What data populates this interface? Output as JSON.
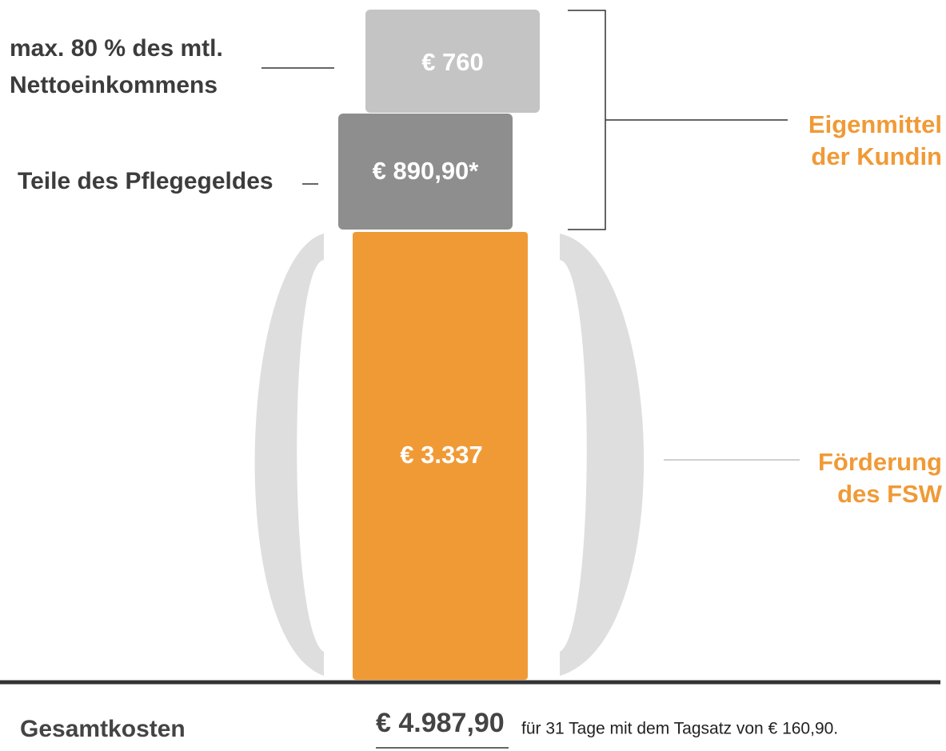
{
  "blocks": [
    {
      "label": "max. 80 % des mtl.",
      "label2": "Nettoeinkommens",
      "amount": "€ 760"
    },
    {
      "label": "Teile des Pflegegeldes",
      "amount": "€ 890,90*"
    },
    {
      "amount": "€ 3.337"
    }
  ],
  "groups": [
    {
      "line1": "Eigenmittel",
      "line2": "der Kundin"
    },
    {
      "line1": "Förderung",
      "line2": "des FSW"
    }
  ],
  "total": {
    "label": "Gesamtkosten",
    "amount": "€ 4.987,90",
    "note": "für 31 Tage mit dem Tagsatz von € 160,90."
  }
}
